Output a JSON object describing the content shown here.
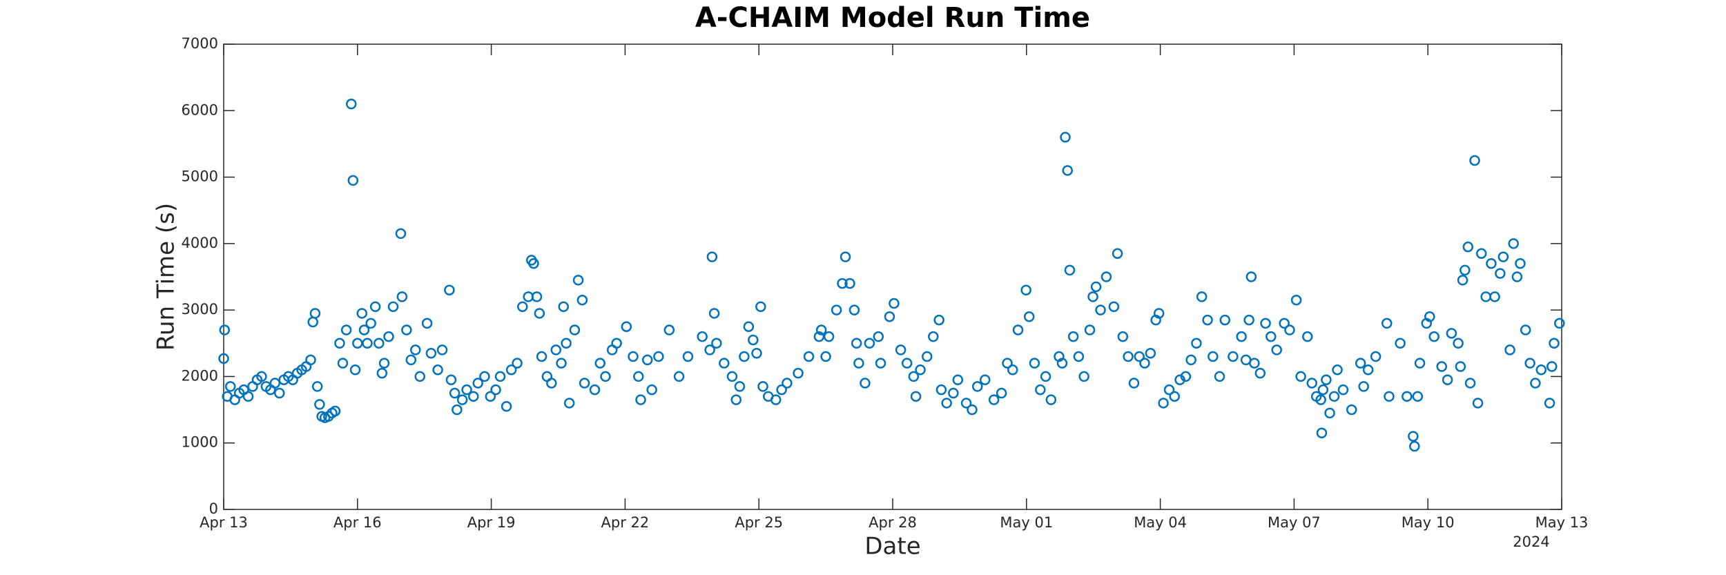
{
  "chart_data": {
    "type": "scatter",
    "title": "A-CHAIM Model Run Time",
    "xlabel": "Date",
    "ylabel": "Run Time (s)",
    "annotation": "2024",
    "color": "#0072bd",
    "xlim": [
      0,
      30
    ],
    "xticks": [
      {
        "value": 0,
        "label": "Apr 13"
      },
      {
        "value": 3,
        "label": "Apr 16"
      },
      {
        "value": 6,
        "label": "Apr 19"
      },
      {
        "value": 9,
        "label": "Apr 22"
      },
      {
        "value": 12,
        "label": "Apr 25"
      },
      {
        "value": 15,
        "label": "Apr 28"
      },
      {
        "value": 18,
        "label": "May 01"
      },
      {
        "value": 21,
        "label": "May 04"
      },
      {
        "value": 24,
        "label": "May 07"
      },
      {
        "value": 27,
        "label": "May 10"
      },
      {
        "value": 30,
        "label": "May 13"
      }
    ],
    "ylim": [
      0,
      7000
    ],
    "yticks": [
      0,
      1000,
      2000,
      3000,
      4000,
      5000,
      6000,
      7000
    ],
    "x": [
      0.0,
      0.02,
      0.08,
      0.15,
      0.25,
      0.35,
      0.45,
      0.55,
      0.65,
      0.75,
      0.85,
      0.95,
      1.05,
      1.15,
      1.25,
      1.35,
      1.45,
      1.55,
      1.65,
      1.75,
      1.85,
      1.95,
      2.0,
      2.05,
      2.1,
      2.15,
      2.2,
      2.27,
      2.35,
      2.43,
      2.5,
      2.6,
      2.67,
      2.75,
      2.86,
      2.9,
      2.95,
      3.0,
      3.1,
      3.15,
      3.22,
      3.3,
      3.4,
      3.48,
      3.55,
      3.6,
      3.7,
      3.8,
      3.97,
      4.0,
      4.1,
      4.2,
      4.3,
      4.4,
      4.56,
      4.65,
      4.8,
      4.9,
      5.06,
      5.1,
      5.18,
      5.23,
      5.35,
      5.45,
      5.6,
      5.7,
      5.85,
      5.98,
      6.1,
      6.2,
      6.34,
      6.45,
      6.58,
      6.7,
      6.83,
      6.9,
      6.95,
      7.02,
      7.08,
      7.13,
      7.25,
      7.35,
      7.45,
      7.57,
      7.62,
      7.68,
      7.75,
      7.87,
      7.95,
      8.04,
      8.09,
      8.32,
      8.44,
      8.56,
      8.71,
      8.81,
      9.03,
      9.18,
      9.3,
      9.35,
      9.5,
      9.6,
      9.75,
      9.99,
      10.21,
      10.41,
      10.73,
      10.9,
      10.95,
      11.0,
      11.05,
      11.22,
      11.4,
      11.49,
      11.57,
      11.67,
      11.77,
      11.87,
      11.95,
      12.04,
      12.09,
      12.21,
      12.38,
      12.51,
      12.63,
      12.88,
      13.12,
      13.35,
      13.4,
      13.5,
      13.57,
      13.74,
      13.87,
      13.94,
      14.04,
      14.14,
      14.19,
      14.24,
      14.38,
      14.48,
      14.68,
      14.73,
      14.93,
      15.03,
      15.18,
      15.32,
      15.47,
      15.62,
      15.52,
      15.77,
      15.91,
      16.04,
      16.09,
      16.21,
      16.36,
      16.46,
      16.65,
      16.78,
      16.9,
      17.07,
      17.27,
      17.44,
      17.57,
      17.69,
      17.81,
      17.99,
      18.06,
      18.18,
      18.31,
      18.43,
      18.55,
      18.73,
      18.8,
      18.87,
      18.92,
      18.97,
      19.05,
      19.17,
      19.29,
      19.42,
      19.49,
      19.56,
      19.66,
      19.79,
      19.96,
      20.04,
      20.16,
      20.28,
      20.41,
      20.53,
      20.65,
      20.78,
      20.9,
      20.97,
      21.07,
      21.2,
      21.32,
      21.44,
      21.57,
      21.69,
      21.81,
      21.93,
      22.06,
      22.18,
      22.33,
      22.45,
      22.63,
      22.82,
      22.92,
      22.99,
      23.04,
      23.11,
      23.24,
      23.36,
      23.48,
      23.61,
      23.78,
      23.9,
      24.05,
      24.15,
      24.3,
      24.4,
      24.5,
      24.6,
      24.65,
      24.72,
      24.62,
      24.8,
      24.9,
      24.97,
      25.1,
      25.29,
      25.49,
      25.56,
      25.66,
      25.83,
      26.08,
      26.13,
      26.38,
      26.53,
      26.67,
      26.7,
      26.77,
      26.82,
      26.97,
      27.04,
      27.14,
      27.31,
      27.44,
      27.53,
      27.68,
      27.73,
      27.78,
      27.83,
      27.9,
      27.95,
      28.05,
      28.12,
      28.2,
      28.3,
      28.42,
      28.5,
      28.62,
      28.69,
      28.84,
      28.92,
      29.0,
      29.07,
      29.19,
      29.29,
      29.41,
      29.54,
      29.73,
      29.78,
      29.83,
      29.95
    ],
    "values": [
      2270,
      2700,
      1700,
      1850,
      1650,
      1750,
      1800,
      1700,
      1850,
      1950,
      2000,
      1850,
      1800,
      1900,
      1750,
      1950,
      2000,
      1950,
      2050,
      2100,
      2150,
      2250,
      2820,
      2950,
      1850,
      1580,
      1400,
      1380,
      1400,
      1450,
      1480,
      2500,
      2200,
      2700,
      6100,
      4950,
      2100,
      2500,
      2950,
      2700,
      2500,
      2800,
      3050,
      2500,
      2050,
      2200,
      2600,
      3050,
      4150,
      3200,
      2700,
      2250,
      2400,
      2000,
      2800,
      2350,
      2100,
      2400,
      3300,
      1950,
      1750,
      1500,
      1650,
      1800,
      1700,
      1900,
      2000,
      1700,
      1800,
      2000,
      1550,
      2100,
      2200,
      3050,
      3200,
      3750,
      3700,
      3200,
      2950,
      2300,
      2000,
      1900,
      2400,
      2200,
      3050,
      2500,
      1600,
      2700,
      3450,
      3150,
      1900,
      1800,
      2200,
      2000,
      2400,
      2500,
      2750,
      2300,
      2000,
      1650,
      2250,
      1800,
      2300,
      2700,
      2000,
      2300,
      2600,
      2400,
      3800,
      2950,
      2500,
      2200,
      2000,
      1650,
      1850,
      2300,
      2750,
      2550,
      2350,
      3050,
      1850,
      1700,
      1650,
      1800,
      1900,
      2050,
      2300,
      2600,
      2700,
      2300,
      2600,
      3000,
      3400,
      3800,
      3400,
      3000,
      2500,
      2200,
      1900,
      2500,
      2600,
      2200,
      2900,
      3100,
      2400,
      2200,
      2000,
      2100,
      1700,
      2300,
      2600,
      2850,
      1800,
      1600,
      1750,
      1950,
      1600,
      1500,
      1850,
      1950,
      1650,
      1750,
      2200,
      2100,
      2700,
      3300,
      2900,
      2200,
      1800,
      2000,
      1650,
      2300,
      2200,
      5600,
      5100,
      3600,
      2600,
      2300,
      2000,
      2700,
      3200,
      3350,
      3000,
      3500,
      3050,
      3850,
      2600,
      2300,
      1900,
      2300,
      2200,
      2350,
      2850,
      2950,
      1600,
      1800,
      1700,
      1950,
      2000,
      2250,
      2500,
      3200,
      2850,
      2300,
      2000,
      2850,
      2300,
      2600,
      2250,
      2850,
      3500,
      2200,
      2050,
      2800,
      2600,
      2400,
      2800,
      2700,
      3150,
      2000,
      2600,
      1900,
      1700,
      1650,
      1800,
      1950,
      1150,
      1450,
      1700,
      2100,
      1800,
      1500,
      2200,
      1850,
      2100,
      2300,
      2800,
      1700,
      2500,
      1700,
      1100,
      950,
      1700,
      2200,
      2800,
      2900,
      2600,
      2150,
      1950,
      2650,
      2500,
      2150,
      3450,
      3600,
      3950,
      1900,
      5250,
      1600,
      3850,
      3200,
      3700,
      3200,
      3550,
      3800,
      2400,
      4000,
      3500,
      3700,
      2700,
      2200,
      1900,
      2100,
      1600,
      2150,
      2500,
      2800
    ]
  }
}
